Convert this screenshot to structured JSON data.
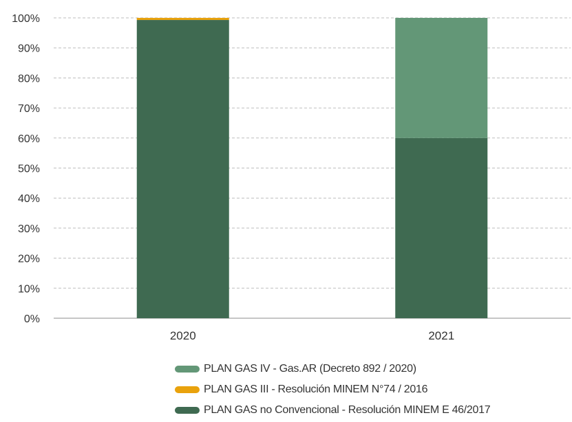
{
  "chart_data": {
    "type": "bar",
    "stacked": true,
    "categories": [
      "2020",
      "2021"
    ],
    "series": [
      {
        "name": "PLAN GAS no Convencional - Resolución MINEM E 46/2017",
        "values": [
          99.3,
          60
        ],
        "color": "#3f6a51"
      },
      {
        "name": "PLAN GAS III - Resolución MINEM N°74 / 2016",
        "values": [
          0.7,
          0
        ],
        "color": "#e9a20c"
      },
      {
        "name": "PLAN GAS IV - Gas.AR (Decreto 892 / 2020)",
        "values": [
          0,
          40
        ],
        "color": "#639777"
      }
    ],
    "ylim": [
      0,
      100
    ],
    "yticks": [
      "0%",
      "10%",
      "20%",
      "30%",
      "40%",
      "50%",
      "60%",
      "70%",
      "80%",
      "90%",
      "100%"
    ],
    "grid": true,
    "legend_placement": "bottom",
    "legend_order": [
      2,
      1,
      0
    ]
  }
}
